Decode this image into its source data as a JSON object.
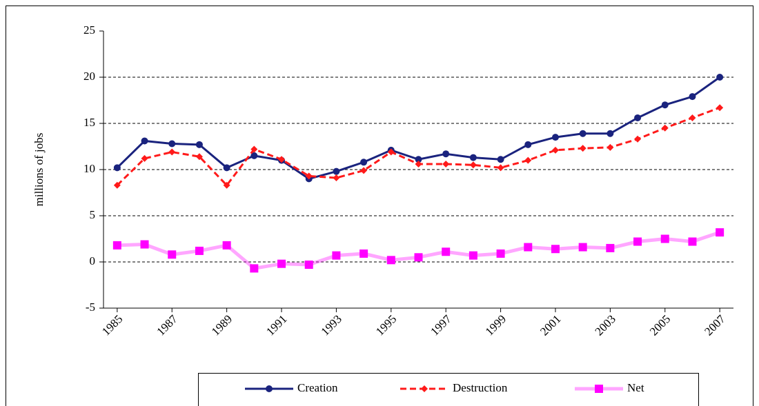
{
  "chart_data": {
    "type": "line",
    "y_label": "millions of jobs",
    "x": [
      1985,
      1986,
      1987,
      1988,
      1989,
      1990,
      1991,
      1992,
      1993,
      1994,
      1995,
      1996,
      1997,
      1998,
      1999,
      2000,
      2001,
      2002,
      2003,
      2004,
      2005,
      2006,
      2007
    ],
    "xlim": [
      1984.5,
      2007.5
    ],
    "xticks": [
      1985,
      1987,
      1989,
      1991,
      1993,
      1995,
      1997,
      1999,
      2001,
      2003,
      2005,
      2007
    ],
    "ylim": [
      -5,
      25
    ],
    "yticks": [
      -5,
      0,
      5,
      10,
      15,
      20,
      25
    ],
    "grid": true,
    "legend": "bottom",
    "series": [
      {
        "name": "Creation",
        "color": "#1a237e",
        "values": [
          10.2,
          13.1,
          12.8,
          12.7,
          10.2,
          11.5,
          11.0,
          9.0,
          9.8,
          10.8,
          12.1,
          11.1,
          11.7,
          11.3,
          11.1,
          12.7,
          13.5,
          13.9,
          13.9,
          15.6,
          17.0,
          17.9,
          20.0
        ]
      },
      {
        "name": "Destruction",
        "color": "#ff1a1a",
        "values": [
          8.3,
          11.2,
          11.9,
          11.4,
          8.3,
          12.2,
          11.1,
          9.3,
          9.1,
          9.9,
          11.9,
          10.6,
          10.6,
          10.5,
          10.2,
          11.0,
          12.1,
          12.3,
          12.4,
          13.3,
          14.5,
          15.6,
          16.7
        ]
      },
      {
        "name": "Net",
        "color": "#ff00ff",
        "values": [
          1.8,
          1.9,
          0.8,
          1.2,
          1.8,
          -0.7,
          -0.2,
          -0.3,
          0.7,
          0.9,
          0.2,
          0.5,
          1.1,
          0.7,
          0.9,
          1.6,
          1.4,
          1.6,
          1.5,
          2.2,
          2.5,
          2.2,
          3.2
        ]
      }
    ]
  }
}
